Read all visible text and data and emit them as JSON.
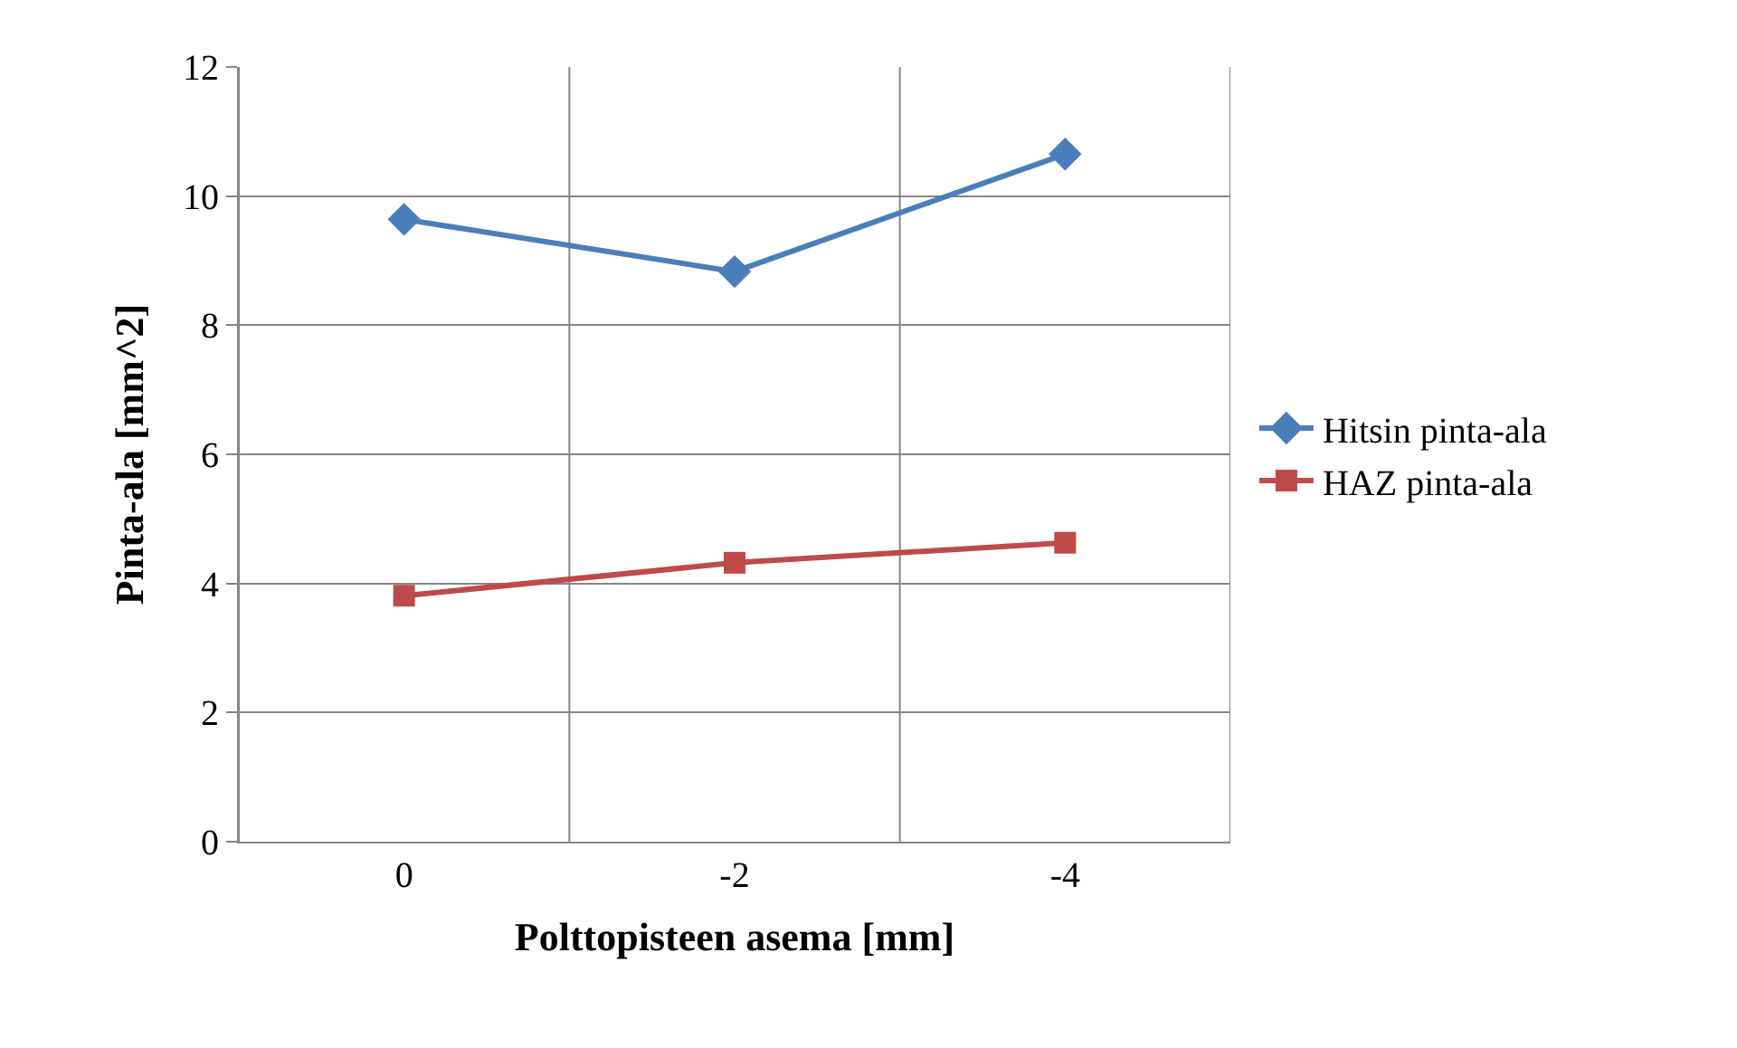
{
  "chart_data": {
    "type": "line",
    "xlabel": "Polttopisteen asema [mm]",
    "ylabel": "Pinta-ala [mm^2]",
    "categories": [
      "0",
      "-2",
      "-4"
    ],
    "series": [
      {
        "name": "Hitsin pinta-ala",
        "color": "#4a7ebb",
        "marker": "diamond",
        "values": [
          9.64,
          8.83,
          10.65
        ]
      },
      {
        "name": "HAZ pinta-ala",
        "color": "#be4b48",
        "marker": "square",
        "values": [
          3.81,
          4.32,
          4.63
        ]
      }
    ],
    "ylim": [
      0,
      12
    ],
    "yticks": [
      0,
      2,
      4,
      6,
      8,
      10,
      12
    ],
    "grid": true,
    "legend": "right",
    "line_style": "solid"
  }
}
